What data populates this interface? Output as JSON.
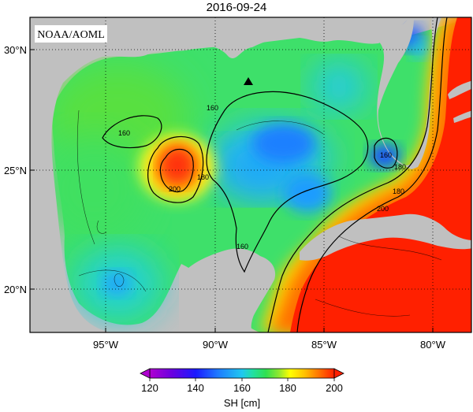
{
  "title": "2016-09-24",
  "credit": "NOAA/AOML",
  "variable_label": "SH [cm]",
  "lat_labels": [
    "30°N",
    "25°N",
    "20°N"
  ],
  "lon_labels": [
    "95°W",
    "90°W",
    "85°W",
    "80°W"
  ],
  "colorbar": {
    "ticks": [
      "120",
      "140",
      "160",
      "180",
      "200"
    ],
    "min": 120,
    "max": 200,
    "colors": [
      "#b000d0",
      "#6a00e0",
      "#1a1aff",
      "#1f7bff",
      "#20c8f0",
      "#22e0a0",
      "#30e050",
      "#90e830",
      "#ffff00",
      "#ffc000",
      "#ff7000",
      "#ff2000"
    ]
  },
  "contour_labels": [
    "160",
    "160",
    "180",
    "200",
    "160",
    "160",
    "180",
    "200",
    "180"
  ],
  "marker": "station-triangle",
  "colors": {
    "land": "#c0c0c0",
    "frame": "#000000"
  }
}
